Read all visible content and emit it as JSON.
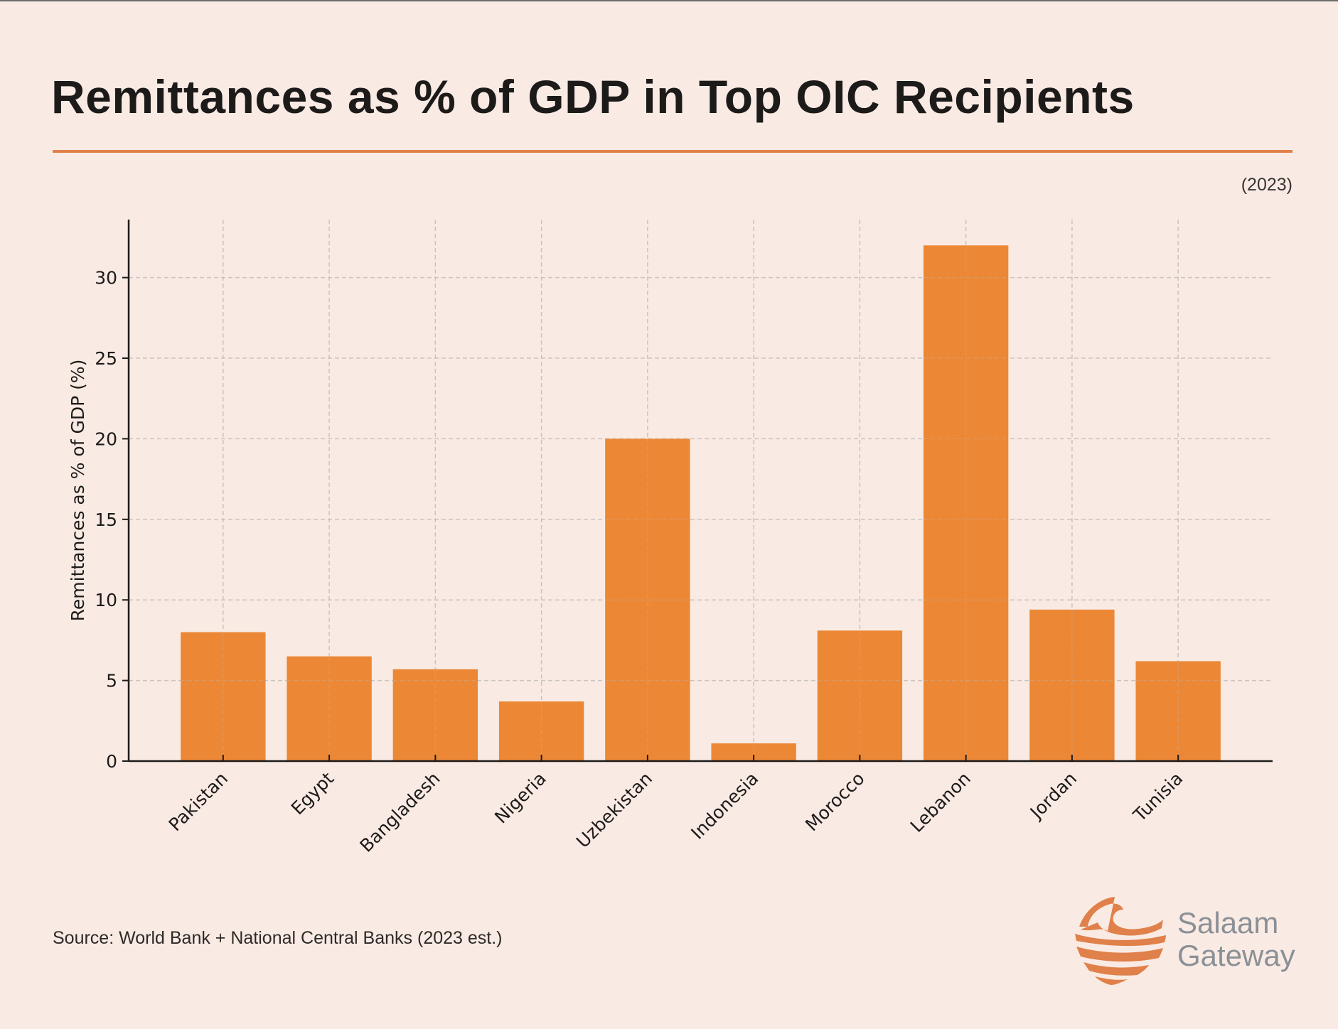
{
  "header": {
    "title": "Remittances as % of GDP in Top OIC Recipients",
    "year_note": "(2023)"
  },
  "footer": {
    "source": "Source: World Bank + National Central Banks (2023 est.)",
    "brand_line1": "Salaam",
    "brand_line2": "Gateway"
  },
  "colors": {
    "background": "#F9EBE4",
    "bar": "#EC8835",
    "accent_rule": "#E0814A",
    "brand_text": "#8B9096",
    "logo": "#E0804A"
  },
  "chart_data": {
    "type": "bar",
    "title": "Remittances as % of GDP in Top OIC Recipients",
    "subtitle": "(2023)",
    "xlabel": "",
    "ylabel": "Remittances as % of GDP (%)",
    "categories": [
      "Pakistan",
      "Egypt",
      "Bangladesh",
      "Nigeria",
      "Uzbekistan",
      "Indonesia",
      "Morocco",
      "Lebanon",
      "Jordan",
      "Tunisia"
    ],
    "values": [
      8.0,
      6.5,
      5.7,
      3.7,
      20.0,
      1.1,
      8.1,
      32.0,
      9.4,
      6.2
    ],
    "ylim": [
      0,
      33.6
    ],
    "yticks": [
      0,
      5,
      10,
      15,
      20,
      25,
      30
    ],
    "grid": true,
    "grid_style": "dashed",
    "legend": "none",
    "x_tick_rotation_deg": 45
  }
}
